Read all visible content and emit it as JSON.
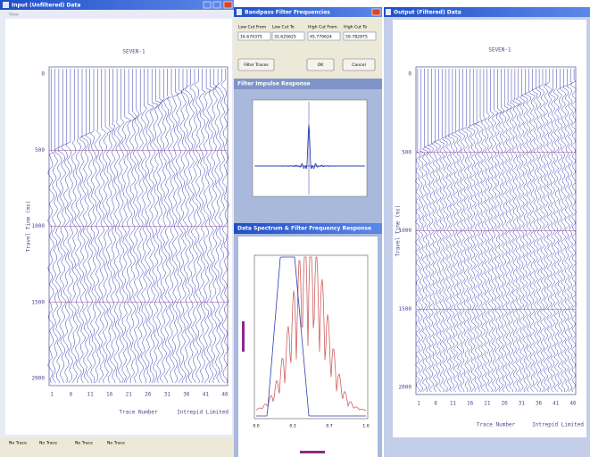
{
  "input_window": {
    "title": "Input (Unfiltered) Data",
    "menu": "View",
    "plot": {
      "title": "SEVEN-1",
      "y_label": "Travel Time (ms)",
      "y_ticks": [
        "0",
        "500",
        "1000",
        "1500",
        "2000"
      ],
      "x_label": "Trace Number",
      "x_ticks": [
        "1",
        "6",
        "11",
        "16",
        "21",
        "26",
        "31",
        "36",
        "41",
        "46"
      ],
      "credit": "Intrepid Limited"
    }
  },
  "filter_dialog": {
    "title": "Bandpass Filter Frequencies",
    "fields": [
      {
        "label": "Low Cut From",
        "value": "16.674375"
      },
      {
        "label": "Low Cut To",
        "value": "31.625625"
      },
      {
        "label": "High Cut From",
        "value": "45.779624"
      },
      {
        "label": "High Cut To",
        "value": "59.782875"
      }
    ],
    "buttons": [
      "Filter Traces",
      "OK",
      "Cancel"
    ]
  },
  "impulse_panel": {
    "title": "Filter Impulse Response"
  },
  "spectrum_panel": {
    "title": "Data Spectrum & Filter Frequency Response",
    "x_ticks": [
      "0.0",
      "0.3",
      "0.7",
      "1.0"
    ]
  },
  "output_window": {
    "title": "Output (Filtered) Data",
    "plot": {
      "title": "SEVEN-1",
      "y_label": "Travel Time (ms)",
      "y_ticks": [
        "0",
        "500",
        "1000",
        "1500",
        "2000"
      ],
      "x_label": "Trace Number",
      "x_ticks": [
        "1",
        "6",
        "11",
        "16",
        "21",
        "26",
        "31",
        "36",
        "41",
        "46"
      ],
      "credit": "Intrepid Limited"
    }
  },
  "status_bar": [
    "No Trace",
    "No Trace",
    "No Trace",
    "No Trace"
  ]
}
